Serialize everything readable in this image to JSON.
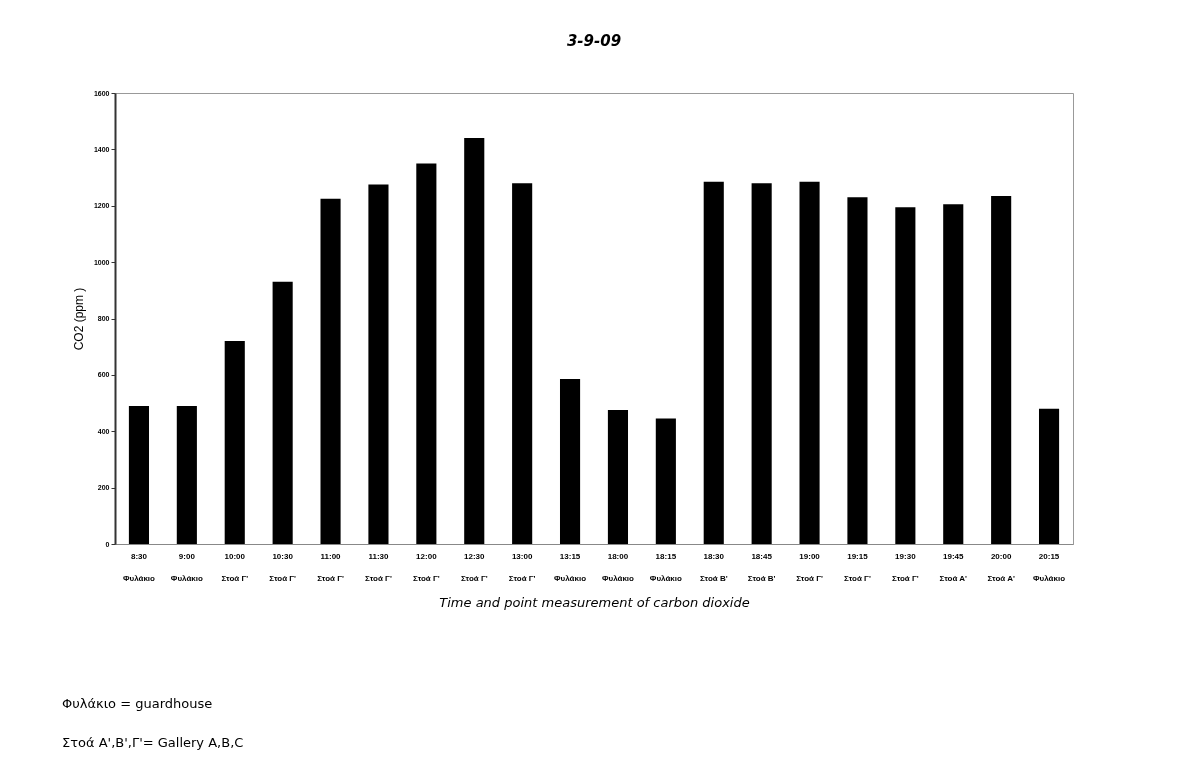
{
  "chart_data": {
    "type": "bar",
    "title": "3-9-09",
    "xlabel": "Time and point measurement of carbon dioxide",
    "ylabel": "CO2 (ppm )",
    "categories": [
      "8:30\nΦυλάκιο",
      "9:00\nΦυλάκιο",
      "10:00\nΣτοά Γ'",
      "10:30\nΣτοά Γ'",
      "11:00\nΣτοά Γ'",
      "11:30\nΣτοά Γ'",
      "12:00\nΣτοά Γ'",
      "12:30\nΣτοά Γ'",
      "13:00\nΣτοά Γ'",
      "13:15\nΦυλάκιο",
      "18:00\nΦυλάκιο",
      "18:15\nΦυλάκιο",
      "18:30\nΣτοά Β'",
      "18:45\nΣτοά Β'",
      "19:00\nΣτοά Γ'",
      "19:15\nΣτοά Γ'",
      "19:30\nΣτοά Γ'",
      "19:45\nΣτοά Α'",
      "20:00\nΣτοά Α'",
      "20:15\nΦυλάκιο"
    ],
    "values": [
      490,
      490,
      720,
      930,
      1225,
      1275,
      1350,
      1440,
      1280,
      585,
      475,
      445,
      1285,
      1280,
      1285,
      1230,
      1195,
      1205,
      1235,
      480
    ],
    "color": "#000000",
    "ylim": [
      0,
      1600
    ],
    "yticks": [
      0,
      200,
      400,
      600,
      800,
      1000,
      1200,
      1400,
      1600
    ],
    "annotations": [
      "Φυλάκιο = guardhouse",
      "Στοά Α',Β',Γ'= Gallery A,B,C"
    ]
  }
}
